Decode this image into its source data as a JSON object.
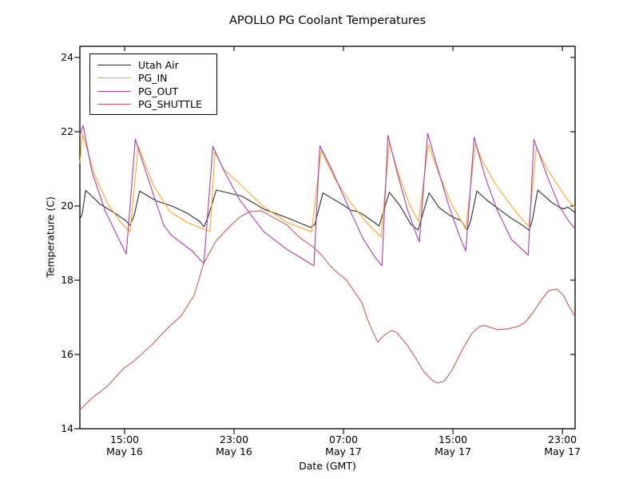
{
  "title": "APOLLO PG Coolant Temperatures",
  "chart_data": {
    "type": "line",
    "title": "APOLLO PG Coolant Temperatures",
    "xlabel": "Date (GMT)",
    "ylabel": "Temperature (C)",
    "x_unit": "hours since May 16 00:00 GMT",
    "xlim": [
      11.73,
      47.93
    ],
    "ylim": [
      14,
      24.3
    ],
    "grid": false,
    "legend_position": "upper left",
    "y_ticks": [
      14,
      16,
      18,
      20,
      22,
      24
    ],
    "x_ticks": [
      {
        "value": 15,
        "time": "15:00",
        "date": "May 16"
      },
      {
        "value": 23,
        "time": "23:00",
        "date": "May 16"
      },
      {
        "value": 31,
        "time": "07:00",
        "date": "May 17"
      },
      {
        "value": 39,
        "time": "15:00",
        "date": "May 17"
      },
      {
        "value": 47,
        "time": "23:00",
        "date": "May 17"
      }
    ],
    "series": [
      {
        "name": "Utah Air",
        "color": "#2e2e2e",
        "points": [
          [
            11.73,
            19.65
          ],
          [
            11.9,
            19.78
          ],
          [
            12.15,
            20.42
          ],
          [
            13.2,
            20.05
          ],
          [
            14.4,
            19.78
          ],
          [
            15.1,
            19.6
          ],
          [
            15.4,
            19.48
          ],
          [
            15.7,
            19.75
          ],
          [
            16.1,
            20.4
          ],
          [
            17.3,
            20.14
          ],
          [
            18.5,
            19.99
          ],
          [
            19.6,
            19.8
          ],
          [
            20.5,
            19.58
          ],
          [
            20.8,
            19.44
          ],
          [
            21.1,
            19.7
          ],
          [
            21.7,
            20.43
          ],
          [
            23.6,
            20.26
          ],
          [
            25.2,
            19.91
          ],
          [
            26.9,
            19.68
          ],
          [
            28.6,
            19.42
          ],
          [
            28.9,
            19.5
          ],
          [
            29.5,
            20.35
          ],
          [
            31.0,
            20.02
          ],
          [
            31.5,
            19.89
          ],
          [
            32.0,
            19.85
          ],
          [
            32.3,
            19.8
          ],
          [
            33.2,
            19.57
          ],
          [
            33.6,
            19.46
          ],
          [
            34.35,
            20.37
          ],
          [
            35.1,
            20.02
          ],
          [
            35.9,
            19.52
          ],
          [
            36.1,
            19.45
          ],
          [
            36.45,
            19.35
          ],
          [
            36.65,
            19.6
          ],
          [
            37.25,
            20.35
          ],
          [
            38.0,
            19.95
          ],
          [
            38.8,
            19.74
          ],
          [
            39.6,
            19.6
          ],
          [
            40.05,
            19.35
          ],
          [
            40.3,
            19.6
          ],
          [
            40.75,
            20.4
          ],
          [
            41.5,
            20.15
          ],
          [
            42.4,
            19.9
          ],
          [
            43.3,
            19.66
          ],
          [
            44.0,
            19.5
          ],
          [
            44.55,
            19.35
          ],
          [
            44.8,
            19.6
          ],
          [
            45.2,
            20.43
          ],
          [
            46.2,
            20.1
          ],
          [
            46.8,
            19.96
          ],
          [
            47.1,
            19.92
          ],
          [
            47.4,
            19.97
          ],
          [
            47.93,
            19.82
          ]
        ]
      },
      {
        "name": "PG_IN",
        "color": "#ffa62b",
        "points": [
          [
            11.73,
            21.15
          ],
          [
            11.92,
            21.95
          ],
          [
            12.78,
            20.86
          ],
          [
            13.77,
            20.06
          ],
          [
            14.77,
            19.53
          ],
          [
            15.41,
            19.3
          ],
          [
            16.0,
            21.61
          ],
          [
            17.1,
            20.56
          ],
          [
            18.3,
            19.85
          ],
          [
            19.6,
            19.55
          ],
          [
            21.25,
            19.31
          ],
          [
            21.6,
            21.45
          ],
          [
            22.24,
            20.99
          ],
          [
            23.4,
            20.6
          ],
          [
            25.16,
            19.98
          ],
          [
            26.9,
            19.55
          ],
          [
            28.67,
            19.3
          ],
          [
            29.37,
            21.5
          ],
          [
            30.4,
            20.71
          ],
          [
            31.6,
            20.05
          ],
          [
            32.75,
            19.53
          ],
          [
            33.75,
            19.16
          ],
          [
            34.35,
            21.7
          ],
          [
            35.1,
            20.77
          ],
          [
            35.85,
            20.02
          ],
          [
            36.5,
            19.58
          ],
          [
            37.2,
            21.65
          ],
          [
            38.0,
            20.85
          ],
          [
            38.9,
            20.05
          ],
          [
            39.94,
            19.38
          ],
          [
            40.65,
            21.68
          ],
          [
            41.1,
            21.25
          ],
          [
            42.1,
            20.6
          ],
          [
            43.27,
            20.0
          ],
          [
            44.14,
            19.6
          ],
          [
            44.55,
            19.46
          ],
          [
            45.1,
            21.57
          ],
          [
            45.9,
            21.0
          ],
          [
            46.77,
            20.5
          ],
          [
            47.36,
            20.18
          ],
          [
            47.93,
            19.96
          ]
        ]
      },
      {
        "name": "PG_OUT",
        "color": "#a640a6",
        "points": [
          [
            11.73,
            21.9
          ],
          [
            11.97,
            22.17
          ],
          [
            12.61,
            20.92
          ],
          [
            13.6,
            19.85
          ],
          [
            14.53,
            19.14
          ],
          [
            15.12,
            18.71
          ],
          [
            15.78,
            21.8
          ],
          [
            16.69,
            20.77
          ],
          [
            17.86,
            19.48
          ],
          [
            18.45,
            19.2
          ],
          [
            19.9,
            18.8
          ],
          [
            20.8,
            18.45
          ],
          [
            21.45,
            21.61
          ],
          [
            22.24,
            20.97
          ],
          [
            23.4,
            20.17
          ],
          [
            25.16,
            19.31
          ],
          [
            26.9,
            18.82
          ],
          [
            28.84,
            18.39
          ],
          [
            29.27,
            21.62
          ],
          [
            30.13,
            20.99
          ],
          [
            31.3,
            20.02
          ],
          [
            32.46,
            19.1
          ],
          [
            33.34,
            18.6
          ],
          [
            33.81,
            18.39
          ],
          [
            34.25,
            21.9
          ],
          [
            34.92,
            20.9
          ],
          [
            35.68,
            19.9
          ],
          [
            36.26,
            19.3
          ],
          [
            36.55,
            19.03
          ],
          [
            37.15,
            21.96
          ],
          [
            37.9,
            21.0
          ],
          [
            38.7,
            20.0
          ],
          [
            39.47,
            19.2
          ],
          [
            39.94,
            18.78
          ],
          [
            40.55,
            21.85
          ],
          [
            41.34,
            20.8
          ],
          [
            42.22,
            19.9
          ],
          [
            43.27,
            19.1
          ],
          [
            44.14,
            18.8
          ],
          [
            44.5,
            18.67
          ],
          [
            44.92,
            21.79
          ],
          [
            45.9,
            20.8
          ],
          [
            46.77,
            20.0
          ],
          [
            47.36,
            19.65
          ],
          [
            47.93,
            19.38
          ]
        ]
      },
      {
        "name": "PG_SHUTTLE",
        "color": "#c55f5f",
        "points": [
          [
            11.73,
            14.5
          ],
          [
            12.2,
            14.68
          ],
          [
            12.78,
            14.88
          ],
          [
            13.25,
            15.0
          ],
          [
            13.83,
            15.18
          ],
          [
            14.42,
            15.42
          ],
          [
            15.0,
            15.65
          ],
          [
            15.23,
            15.7
          ],
          [
            15.7,
            15.83
          ],
          [
            17.0,
            16.26
          ],
          [
            18.04,
            16.67
          ],
          [
            19.15,
            17.05
          ],
          [
            20.08,
            17.59
          ],
          [
            20.78,
            18.45
          ],
          [
            21.66,
            19.05
          ],
          [
            22.42,
            19.35
          ],
          [
            23.41,
            19.7
          ],
          [
            24.17,
            19.85
          ],
          [
            24.99,
            19.87
          ],
          [
            26.04,
            19.65
          ],
          [
            26.91,
            19.48
          ],
          [
            27.79,
            19.15
          ],
          [
            28.84,
            18.88
          ],
          [
            29.42,
            18.67
          ],
          [
            30.01,
            18.39
          ],
          [
            30.71,
            18.15
          ],
          [
            31.18,
            18.02
          ],
          [
            31.88,
            17.65
          ],
          [
            32.34,
            17.4
          ],
          [
            32.75,
            16.95
          ],
          [
            33.1,
            16.65
          ],
          [
            33.51,
            16.33
          ],
          [
            33.92,
            16.5
          ],
          [
            34.5,
            16.65
          ],
          [
            34.92,
            16.58
          ],
          [
            35.68,
            16.24
          ],
          [
            36.26,
            15.91
          ],
          [
            36.85,
            15.55
          ],
          [
            37.43,
            15.32
          ],
          [
            37.84,
            15.23
          ],
          [
            38.36,
            15.28
          ],
          [
            38.89,
            15.55
          ],
          [
            39.65,
            16.1
          ],
          [
            40.35,
            16.55
          ],
          [
            40.93,
            16.75
          ],
          [
            41.34,
            16.78
          ],
          [
            41.81,
            16.72
          ],
          [
            42.28,
            16.67
          ],
          [
            42.98,
            16.69
          ],
          [
            43.74,
            16.75
          ],
          [
            44.32,
            16.88
          ],
          [
            44.9,
            17.15
          ],
          [
            45.43,
            17.45
          ],
          [
            46.01,
            17.72
          ],
          [
            46.6,
            17.76
          ],
          [
            47.07,
            17.6
          ],
          [
            47.48,
            17.3
          ],
          [
            47.93,
            17.02
          ]
        ]
      }
    ]
  }
}
